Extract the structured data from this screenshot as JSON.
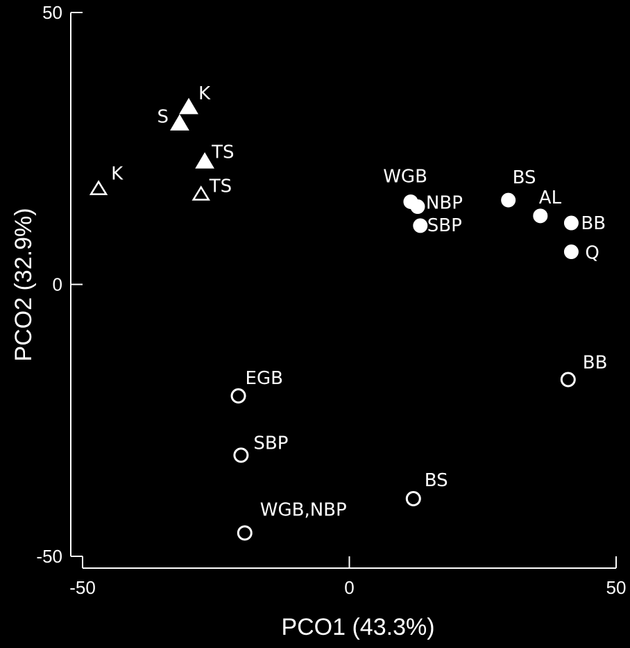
{
  "chart_data": {
    "type": "scatter",
    "title": "",
    "xlabel": "PCO1 (43.3%)",
    "ylabel": "PCO2 (32.9%)",
    "xlim": [
      -50,
      50
    ],
    "ylim": [
      -50,
      50
    ],
    "x_ticks": [
      -50,
      0,
      50
    ],
    "y_ticks": [
      50,
      0,
      -50
    ],
    "x_tick_labels": [
      "-50",
      "0",
      "50"
    ],
    "y_tick_labels": [
      "50",
      "0",
      "-50"
    ],
    "grid": false,
    "background": "#000000",
    "foreground": "#ffffff",
    "series": [
      {
        "marker": "triangle-filled",
        "points": [
          {
            "x": -30.1,
            "y": 32.5,
            "label": "K"
          },
          {
            "x": -31.8,
            "y": 29.5,
            "label": "S"
          },
          {
            "x": -27.1,
            "y": 22.5,
            "label": "TS"
          }
        ]
      },
      {
        "marker": "triangle-open",
        "points": [
          {
            "x": -47.0,
            "y": 17.5,
            "label": "K"
          },
          {
            "x": -27.8,
            "y": 16.5,
            "label": "TS"
          }
        ]
      },
      {
        "marker": "circle-filled",
        "points": [
          {
            "x": 11.5,
            "y": 15.2,
            "label": "WGB"
          },
          {
            "x": 12.8,
            "y": 14.3,
            "label": "NBP"
          },
          {
            "x": 13.3,
            "y": 10.8,
            "label": "SBP"
          },
          {
            "x": 29.8,
            "y": 15.5,
            "label": "BS"
          },
          {
            "x": 35.8,
            "y": 12.6,
            "label": "AL"
          },
          {
            "x": 41.6,
            "y": 11.3,
            "label": "BB"
          },
          {
            "x": 41.6,
            "y": 6.0,
            "label": "Q"
          }
        ]
      },
      {
        "marker": "circle-open",
        "points": [
          {
            "x": -20.8,
            "y": -20.5,
            "label": "EGB"
          },
          {
            "x": 41.0,
            "y": -17.5,
            "label": "BB"
          },
          {
            "x": -20.3,
            "y": -31.4,
            "label": "SBP"
          },
          {
            "x": 12.0,
            "y": -39.4,
            "label": "BS"
          },
          {
            "x": -19.6,
            "y": -45.7,
            "label": "WGB,NBP"
          }
        ]
      }
    ]
  }
}
